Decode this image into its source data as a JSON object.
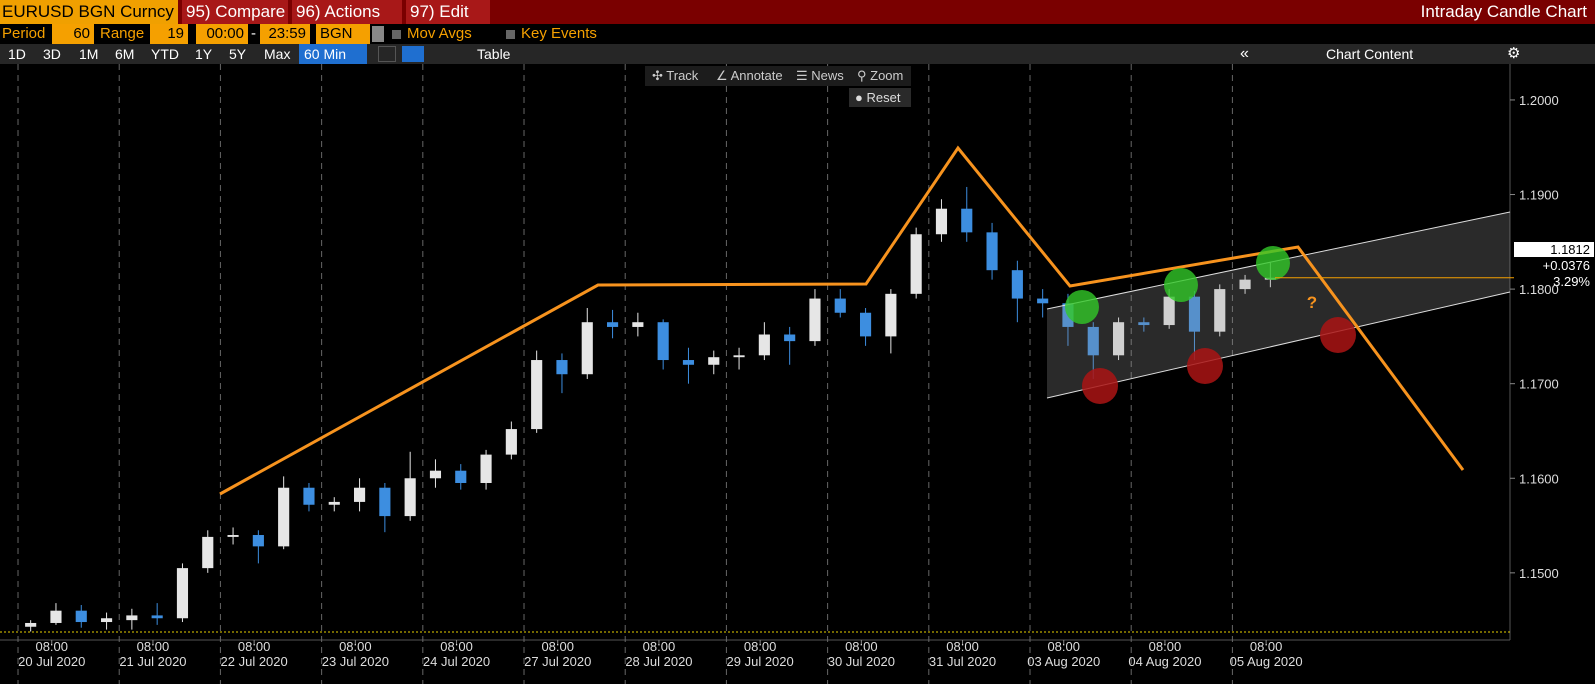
{
  "header": {
    "security": "EURUSD BGN Curncy",
    "menu": [
      "95) Compare",
      "96) Actions",
      "97) Edit"
    ],
    "title": "Intraday Candle Chart"
  },
  "controls": {
    "period_label": "Period",
    "period": "60",
    "range_label": "Range",
    "range": "19",
    "start": "00:00",
    "dash": "-",
    "end": "23:59",
    "source": "BGN",
    "mov_avgs": "Mov Avgs",
    "key_events": "Key Events"
  },
  "toolbar": {
    "ranges": [
      "1D",
      "3D",
      "1M",
      "6M",
      "YTD",
      "1Y",
      "5Y",
      "Max"
    ],
    "interval": "60 Min",
    "table": "Table",
    "chart_content": "Chart Content"
  },
  "chart_tools": [
    "Track",
    "Annotate",
    "News",
    "Zoom"
  ],
  "reset": "Reset",
  "chart_data": {
    "type": "candlestick",
    "x": [
      0.125,
      0.375,
      0.625,
      0.875,
      1.125,
      1.375,
      1.625,
      1.875,
      2.125,
      2.375,
      2.625,
      2.875,
      3.125,
      3.375,
      3.625,
      3.875,
      4.125,
      4.375,
      4.625,
      4.875,
      5.125,
      5.375,
      5.625,
      5.875,
      6.125,
      6.375,
      6.625,
      6.875,
      7.125,
      7.375,
      7.625,
      7.875,
      8.125,
      8.375,
      8.625,
      8.875,
      9.125,
      9.375,
      9.625,
      9.875,
      10.125,
      10.375,
      10.625,
      10.875,
      11.125,
      11.375,
      11.625,
      11.875,
      12.125,
      12.375
    ],
    "open": [
      1.1443,
      1.1447,
      1.146,
      1.1448,
      1.145,
      1.1455,
      1.1452,
      1.1505,
      1.1538,
      1.154,
      1.1528,
      1.159,
      1.1572,
      1.1575,
      1.159,
      1.156,
      1.16,
      1.1608,
      1.1595,
      1.1625,
      1.1652,
      1.1725,
      1.171,
      1.1765,
      1.176,
      1.1765,
      1.1725,
      1.172,
      1.1728,
      1.173,
      1.1752,
      1.1745,
      1.179,
      1.1775,
      1.175,
      1.1795,
      1.1858,
      1.1885,
      1.186,
      1.182,
      1.179,
      1.1785,
      1.176,
      1.173,
      1.1765,
      1.1762,
      1.1792,
      1.1755,
      1.18,
      1.181
    ],
    "high": [
      1.145,
      1.1468,
      1.1466,
      1.1458,
      1.1462,
      1.1468,
      1.151,
      1.1545,
      1.1548,
      1.1545,
      1.1602,
      1.1595,
      1.158,
      1.16,
      1.1595,
      1.1628,
      1.162,
      1.1615,
      1.163,
      1.166,
      1.1735,
      1.1732,
      1.178,
      1.1778,
      1.1775,
      1.1768,
      1.1738,
      1.1735,
      1.1738,
      1.1765,
      1.176,
      1.18,
      1.18,
      1.178,
      1.18,
      1.1865,
      1.1895,
      1.1908,
      1.187,
      1.183,
      1.18,
      1.1795,
      1.1765,
      1.177,
      1.177,
      1.18,
      1.1798,
      1.1805,
      1.1815,
      1.1828
    ],
    "low": [
      1.1438,
      1.1445,
      1.1442,
      1.144,
      1.144,
      1.1445,
      1.1448,
      1.15,
      1.153,
      1.151,
      1.1525,
      1.1565,
      1.1565,
      1.1565,
      1.1543,
      1.1555,
      1.159,
      1.1588,
      1.1588,
      1.162,
      1.1648,
      1.169,
      1.1705,
      1.1748,
      1.175,
      1.1715,
      1.17,
      1.171,
      1.1715,
      1.1725,
      1.172,
      1.174,
      1.177,
      1.174,
      1.1732,
      1.179,
      1.185,
      1.185,
      1.181,
      1.1765,
      1.177,
      1.174,
      1.1705,
      1.1725,
      1.1755,
      1.1758,
      1.1725,
      1.175,
      1.1795,
      1.1802
    ],
    "close": [
      1.1447,
      1.146,
      1.1448,
      1.1452,
      1.1455,
      1.1452,
      1.1505,
      1.1538,
      1.154,
      1.1528,
      1.159,
      1.1572,
      1.1575,
      1.159,
      1.156,
      1.16,
      1.1608,
      1.1595,
      1.1625,
      1.1652,
      1.1725,
      1.171,
      1.1765,
      1.176,
      1.1765,
      1.1725,
      1.172,
      1.1728,
      1.173,
      1.1752,
      1.1745,
      1.179,
      1.1775,
      1.175,
      1.1795,
      1.1858,
      1.1885,
      1.186,
      1.182,
      1.179,
      1.1785,
      1.176,
      1.173,
      1.1765,
      1.1762,
      1.1792,
      1.1755,
      1.18,
      1.181,
      1.1812
    ],
    "up_color": "#e6e6e6",
    "down_color": "#3d8ee0",
    "xlim": [
      -0.178,
      14.743
    ],
    "ylim": [
      1.1429,
      1.2038
    ],
    "yticks": [
      {
        "value": 1.2,
        "label": "1.2000"
      },
      {
        "value": 1.19,
        "label": "1.1900"
      },
      {
        "value": 1.18,
        "label": "1.1800"
      },
      {
        "value": 1.17,
        "label": "1.1700"
      },
      {
        "value": 1.16,
        "label": "1.1600"
      },
      {
        "value": 1.15,
        "label": "1.1500"
      }
    ],
    "xticks": [
      {
        "value": 0.3333,
        "label": "08:00"
      },
      {
        "value": 1.3333,
        "label": "08:00"
      },
      {
        "value": 2.3333,
        "label": "08:00"
      },
      {
        "value": 3.3333,
        "label": "08:00"
      },
      {
        "value": 4.3333,
        "label": "08:00"
      },
      {
        "value": 5.3333,
        "label": "08:00"
      },
      {
        "value": 6.3333,
        "label": "08:00"
      },
      {
        "value": 7.3333,
        "label": "08:00"
      },
      {
        "value": 8.3333,
        "label": "08:00"
      },
      {
        "value": 9.3333,
        "label": "08:00"
      },
      {
        "value": 10.3333,
        "label": "08:00"
      },
      {
        "value": 11.3333,
        "label": "08:00"
      },
      {
        "value": 12.3333,
        "label": "08:00"
      }
    ],
    "x_dates": [
      "20 Jul 2020",
      "21 Jul 2020",
      "22 Jul 2020",
      "23 Jul 2020",
      "24 Jul 2020",
      "27 Jul 2020",
      "28 Jul 2020",
      "29 Jul 2020",
      "30 Jul 2020",
      "31 Jul 2020",
      "03 Aug 2020",
      "04 Aug 2020",
      "05 Aug 2020"
    ],
    "xgrid": [
      0,
      1,
      2,
      3,
      4,
      5,
      6,
      7,
      8,
      9,
      10,
      11,
      12
    ],
    "last_price": {
      "value": 1.1812,
      "label": "1.1812"
    },
    "change": "+0.0376",
    "change_pct": "3.29%",
    "annotation": "?"
  }
}
